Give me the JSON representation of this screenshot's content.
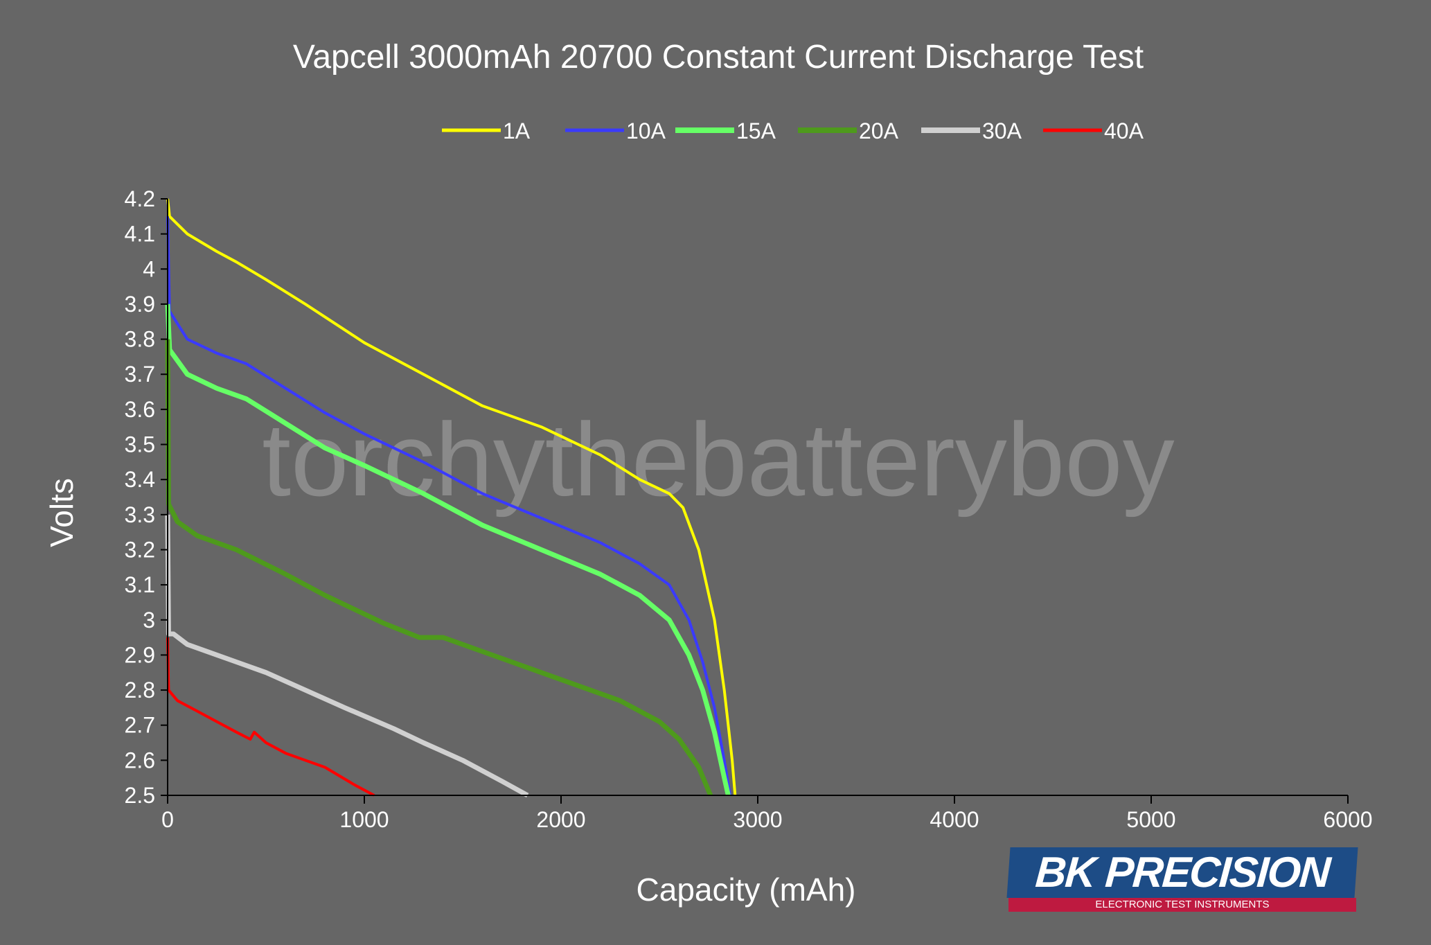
{
  "chart_data": {
    "type": "line",
    "title": "Vapcell 3000mAh 20700 Constant Current Discharge Test",
    "xlabel": "Capacity (mAh)",
    "ylabel": "Volts",
    "xlim": [
      0,
      6000
    ],
    "ylim": [
      2.5,
      4.2
    ],
    "xticks": [
      "0",
      "1000",
      "2000",
      "3000",
      "4000",
      "5000",
      "6000"
    ],
    "yticks": [
      "2.5",
      "2.6",
      "2.7",
      "2.8",
      "2.9",
      "3",
      "3.1",
      "3.2",
      "3.3",
      "3.4",
      "3.5",
      "3.6",
      "3.7",
      "3.8",
      "3.9",
      "4",
      "4.1",
      "4.2"
    ],
    "grid": false,
    "legend_position": "top",
    "watermark": "torchythebatteryboy",
    "series": [
      {
        "name": "1A",
        "color": "#ffff00",
        "x": [
          0,
          10,
          100,
          250,
          350,
          500,
          700,
          1000,
          1300,
          1600,
          1900,
          2200,
          2400,
          2550,
          2620,
          2700,
          2780,
          2830,
          2870,
          2885
        ],
        "y": [
          4.2,
          4.15,
          4.1,
          4.05,
          4.02,
          3.97,
          3.9,
          3.79,
          3.7,
          3.61,
          3.55,
          3.47,
          3.4,
          3.36,
          3.32,
          3.2,
          3.0,
          2.8,
          2.6,
          2.5
        ]
      },
      {
        "name": "10A",
        "color": "#3a3aff",
        "x": [
          0,
          10,
          100,
          250,
          400,
          600,
          800,
          1000,
          1300,
          1600,
          1900,
          2200,
          2400,
          2550,
          2650,
          2720,
          2780,
          2830,
          2860
        ],
        "y": [
          4.15,
          3.88,
          3.8,
          3.76,
          3.73,
          3.66,
          3.59,
          3.53,
          3.45,
          3.36,
          3.29,
          3.22,
          3.16,
          3.1,
          3.0,
          2.88,
          2.75,
          2.6,
          2.5
        ]
      },
      {
        "name": "15A",
        "color": "#66ff66",
        "x": [
          0,
          10,
          100,
          250,
          400,
          600,
          800,
          1000,
          1300,
          1600,
          1900,
          2200,
          2400,
          2550,
          2650,
          2720,
          2780,
          2830,
          2850
        ],
        "y": [
          3.9,
          3.77,
          3.7,
          3.66,
          3.63,
          3.56,
          3.49,
          3.44,
          3.36,
          3.27,
          3.2,
          3.13,
          3.07,
          3.0,
          2.9,
          2.8,
          2.68,
          2.55,
          2.5
        ]
      },
      {
        "name": "20A",
        "color": "#4e9a1c",
        "x": [
          0,
          5,
          50,
          150,
          350,
          600,
          800,
          1100,
          1280,
          1400,
          1700,
          2000,
          2300,
          2500,
          2600,
          2700,
          2760
        ],
        "y": [
          3.8,
          3.33,
          3.28,
          3.24,
          3.2,
          3.13,
          3.07,
          2.99,
          2.95,
          2.95,
          2.89,
          2.83,
          2.77,
          2.71,
          2.66,
          2.58,
          2.5
        ]
      },
      {
        "name": "30A",
        "color": "#d0d0d0",
        "x": [
          0,
          5,
          30,
          100,
          200,
          350,
          500,
          700,
          900,
          1150,
          1300,
          1500,
          1700,
          1830
        ],
        "y": [
          3.3,
          2.96,
          2.96,
          2.93,
          2.91,
          2.88,
          2.85,
          2.8,
          2.75,
          2.69,
          2.65,
          2.6,
          2.54,
          2.5
        ]
      },
      {
        "name": "40A",
        "color": "#ff0000",
        "x": [
          0,
          5,
          50,
          150,
          250,
          350,
          420,
          440,
          500,
          600,
          800,
          950,
          1050
        ],
        "y": [
          2.95,
          2.8,
          2.77,
          2.74,
          2.71,
          2.68,
          2.66,
          2.68,
          2.65,
          2.62,
          2.58,
          2.53,
          2.5
        ]
      }
    ]
  },
  "logo": {
    "brand": "BK PRECISION",
    "tagline": "ELECTRONIC TEST INSTRUMENTS"
  }
}
